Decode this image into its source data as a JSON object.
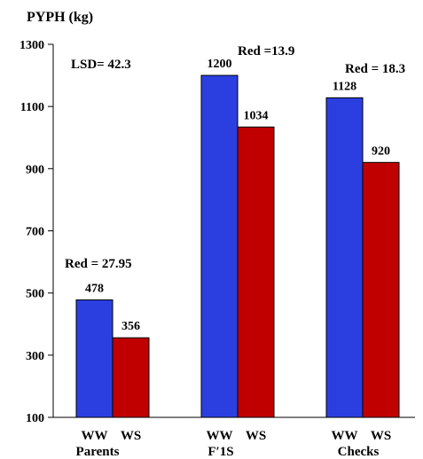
{
  "chart_data": {
    "type": "bar",
    "ylabel": "PYPH (kg)",
    "ylim": [
      100,
      1300
    ],
    "yticks": [
      100,
      300,
      500,
      700,
      900,
      1100,
      1300
    ],
    "groups": [
      {
        "name": "Parents",
        "bars": [
          "WW",
          "WS"
        ],
        "values": [
          478,
          356
        ],
        "value_labels": [
          "478",
          "356"
        ],
        "note": "Red = 27.95"
      },
      {
        "name": "F′1S",
        "bars": [
          "WW",
          "WS"
        ],
        "values": [
          1200,
          1034
        ],
        "value_labels": [
          "1200",
          "1034"
        ],
        "note": "Red =13.9"
      },
      {
        "name": "Checks",
        "bars": [
          "WW",
          "WS"
        ],
        "values": [
          1128,
          920
        ],
        "value_labels": [
          "1128",
          "920"
        ],
        "note": "Red = 18.3"
      }
    ],
    "series": [
      {
        "name": "WW",
        "color": "#2b3fe0",
        "values": [
          478,
          1200,
          1128
        ]
      },
      {
        "name": "WS",
        "color": "#c00000",
        "values": [
          356,
          1034,
          920
        ]
      }
    ],
    "annotations": [
      "LSD= 42.3"
    ],
    "grid": false,
    "legend": "none"
  }
}
